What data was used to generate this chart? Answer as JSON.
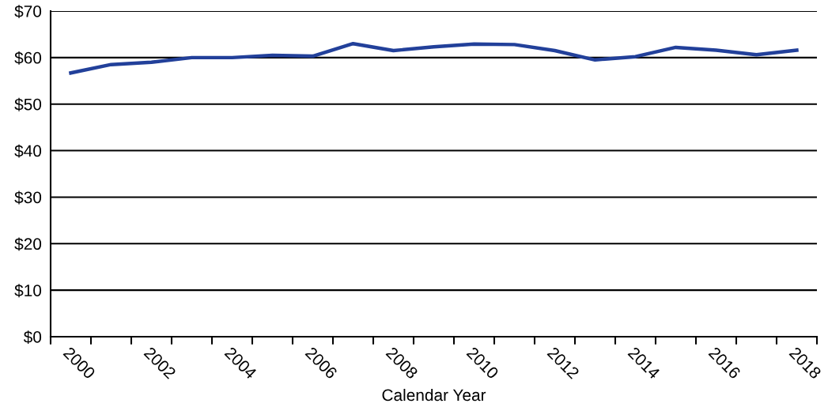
{
  "chart_data": {
    "type": "line",
    "xlabel": "Calendar Year",
    "categories": [
      "2000",
      null,
      "2002",
      null,
      "2004",
      null,
      "2006",
      null,
      "2008",
      null,
      "2010",
      null,
      "2012",
      null,
      "2014",
      null,
      "2016",
      null,
      "2018"
    ],
    "series": [
      {
        "color": "#22409a",
        "values": [
          56.7,
          58.5,
          59,
          60,
          60,
          60.5,
          60.3,
          63,
          61.5,
          62.3,
          62.9,
          62.8,
          61.5,
          59.5,
          60.2,
          62.2,
          61.6,
          60.6,
          61.6
        ]
      }
    ],
    "ylim": [
      0,
      70
    ],
    "yticks": [
      {
        "value": 0,
        "label": "$0"
      },
      {
        "value": 10,
        "label": "$10"
      },
      {
        "value": 20,
        "label": "$20"
      },
      {
        "value": 30,
        "label": "$30"
      },
      {
        "value": 40,
        "label": "$40"
      },
      {
        "value": 50,
        "label": "$50"
      },
      {
        "value": 60,
        "label": "$60"
      },
      {
        "value": 70,
        "label": "$70"
      }
    ],
    "grid": "y",
    "marker": "none",
    "line_style": "solid",
    "legend": false
  }
}
